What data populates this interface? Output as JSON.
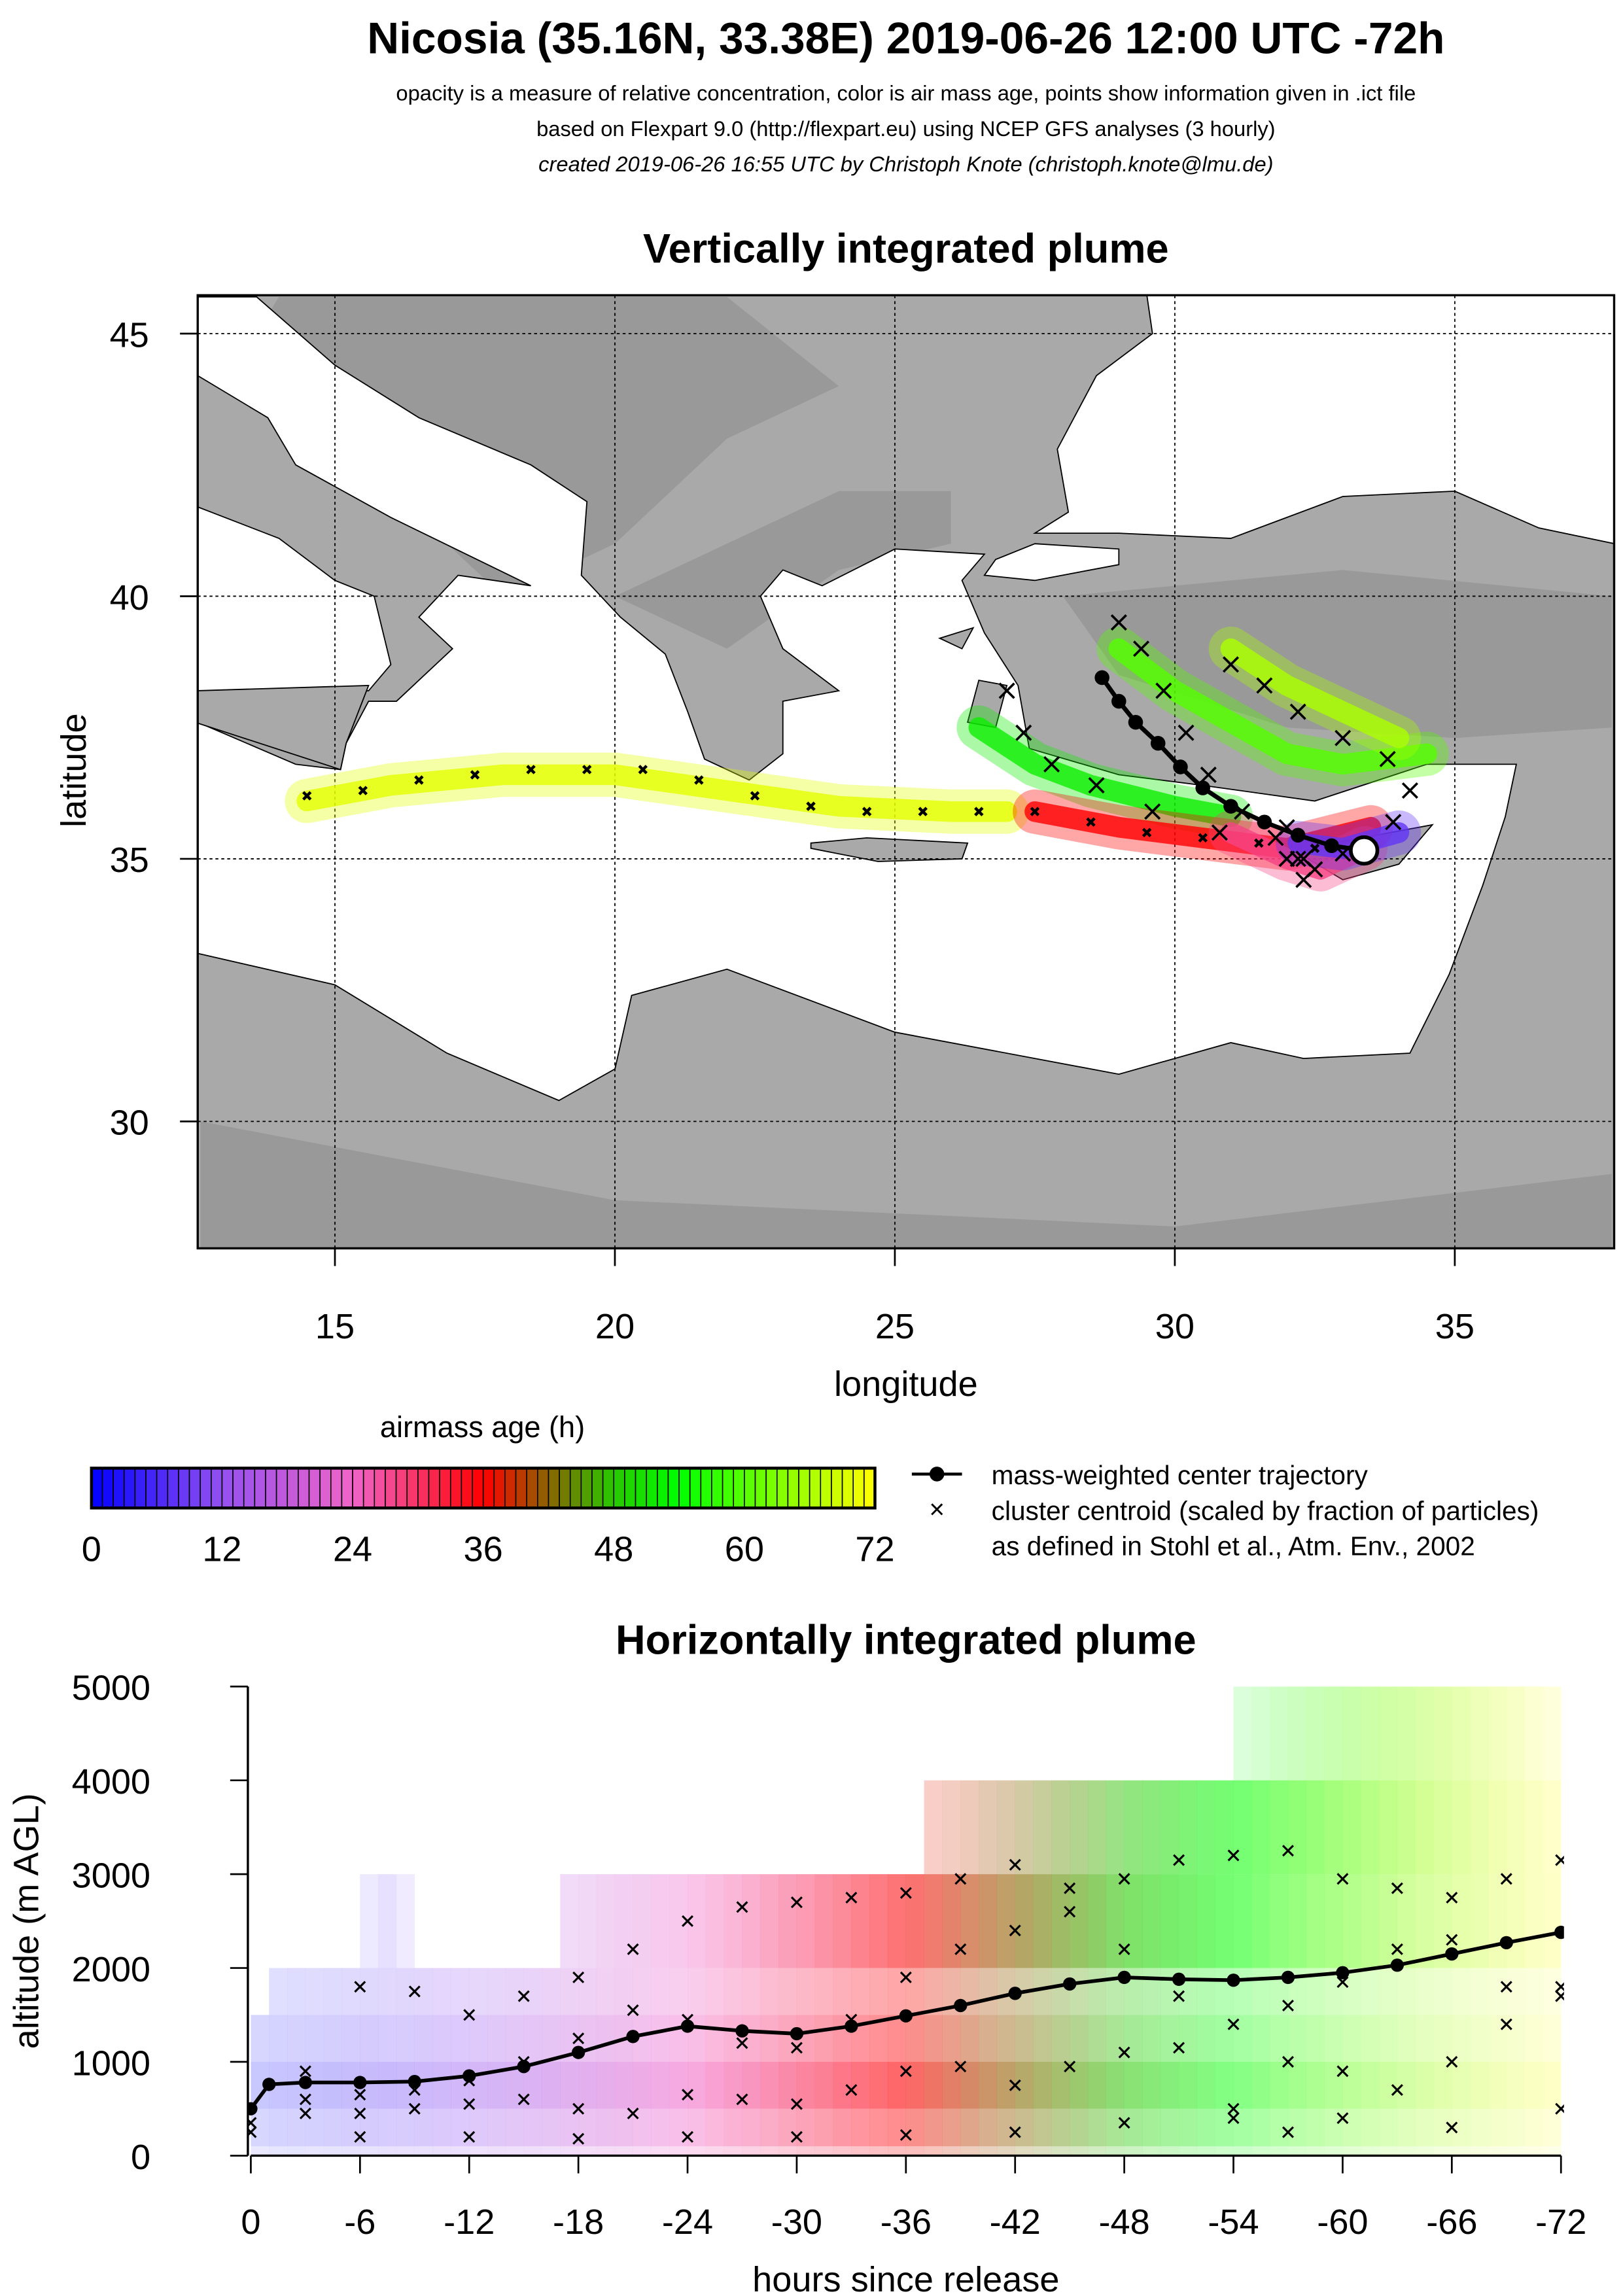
{
  "header": {
    "title": "Nicosia (35.16N, 33.38E) 2019-06-26 12:00 UTC -72h",
    "line1": "opacity is a measure of relative concentration, color is air mass age, points show information given in .ict file",
    "line2": "based on Flexpart 9.0 (http://flexpart.eu) using NCEP GFS analyses (3 hourly)",
    "line3": "created 2019-06-26 16:55 UTC by Christoph Knote (christoph.knote@lmu.de)"
  },
  "colors": {
    "age_stops": [
      [
        0,
        "#0000ff"
      ],
      [
        12,
        "#9450f0"
      ],
      [
        24,
        "#f064c8"
      ],
      [
        36,
        "#ff0000"
      ],
      [
        42,
        "#8a6400"
      ],
      [
        48,
        "#28c800"
      ],
      [
        54,
        "#00ff00"
      ],
      [
        72,
        "#ffff00"
      ]
    ],
    "land": "#a9a9a9",
    "sea": "#ffffff"
  },
  "colorbar": {
    "title": "airmass age (h)",
    "ticks": [
      "0",
      "12",
      "24",
      "36",
      "48",
      "60",
      "72"
    ]
  },
  "legend": {
    "center": "mass-weighted center trajectory",
    "cluster": "cluster centroid (scaled by fraction of particles)",
    "ref": "as defined in Stohl et al., Atm. Env., 2002"
  },
  "chart_data": [
    {
      "type": "scatter",
      "title": "Vertically integrated plume",
      "xlabel": "longitude",
      "ylabel": "latitude",
      "xlim": [
        12.55,
        37.85
      ],
      "ylim": [
        27.58,
        45.73
      ],
      "xticks": [
        "15",
        "20",
        "25",
        "30",
        "35"
      ],
      "yticks": [
        "30",
        "35",
        "40",
        "45"
      ],
      "grid": true,
      "release_point": [
        33.38,
        35.16
      ],
      "plume": [
        {
          "age": 70,
          "path": [
            [
              14.5,
              36.1
            ],
            [
              16,
              36.4
            ],
            [
              18,
              36.6
            ],
            [
              20,
              36.6
            ],
            [
              22,
              36.3
            ],
            [
              24,
              36.0
            ],
            [
              26,
              35.9
            ],
            [
              27,
              35.9
            ]
          ]
        },
        {
          "age": 52,
          "path": [
            [
              26.5,
              37.5
            ],
            [
              27.5,
              36.8
            ],
            [
              28.5,
              36.4
            ],
            [
              30,
              36.0
            ],
            [
              31,
              35.8
            ]
          ]
        },
        {
          "age": 60,
          "path": [
            [
              29,
              39.0
            ],
            [
              30,
              38.2
            ],
            [
              31,
              37.6
            ],
            [
              32,
              37.0
            ],
            [
              33,
              36.8
            ],
            [
              34.5,
              37.0
            ]
          ]
        },
        {
          "age": 66,
          "path": [
            [
              31,
              39.0
            ],
            [
              32,
              38.3
            ],
            [
              33,
              37.8
            ],
            [
              34,
              37.3
            ]
          ]
        },
        {
          "age": 36,
          "path": [
            [
              27.5,
              35.9
            ],
            [
              29,
              35.6
            ],
            [
              30.5,
              35.4
            ],
            [
              32,
              35.2
            ],
            [
              33.5,
              35.6
            ]
          ]
        },
        {
          "age": 28,
          "path": [
            [
              31,
              35.5
            ],
            [
              32,
              35.0
            ],
            [
              32.6,
              34.8
            ],
            [
              33.4,
              35.2
            ]
          ]
        },
        {
          "age": 8,
          "path": [
            [
              32.2,
              35.3
            ],
            [
              33,
              35.2
            ],
            [
              34,
              35.5
            ]
          ]
        }
      ],
      "center_trajectory": [
        [
          33.38,
          35.16
        ],
        [
          32.8,
          35.25
        ],
        [
          32.2,
          35.45
        ],
        [
          31.6,
          35.7
        ],
        [
          31.0,
          36.0
        ],
        [
          30.5,
          36.35
        ],
        [
          30.1,
          36.75
        ],
        [
          29.7,
          37.2
        ],
        [
          29.3,
          37.6
        ],
        [
          29.0,
          38.0
        ],
        [
          28.7,
          38.45
        ]
      ],
      "clusters": [
        [
          [
            14.5,
            36.2
          ],
          [
            15.5,
            36.3
          ],
          [
            16.5,
            36.5
          ],
          [
            17.5,
            36.6
          ],
          [
            18.5,
            36.7
          ],
          [
            19.5,
            36.7
          ],
          [
            20.5,
            36.7
          ],
          [
            21.5,
            36.5
          ],
          [
            22.5,
            36.2
          ],
          [
            23.5,
            36.0
          ],
          [
            24.5,
            35.9
          ],
          [
            25.5,
            35.9
          ],
          [
            26.5,
            35.9
          ],
          [
            27.5,
            35.9
          ],
          [
            28.5,
            35.7
          ],
          [
            29.5,
            35.5
          ],
          [
            30.5,
            35.4
          ],
          [
            31.5,
            35.3
          ],
          [
            32.5,
            35.2
          ],
          [
            33.38,
            35.16
          ]
        ],
        [
          [
            29.0,
            39.5
          ],
          [
            29.4,
            39.0
          ],
          [
            29.8,
            38.2
          ],
          [
            30.2,
            37.4
          ],
          [
            30.6,
            36.6
          ],
          [
            31.2,
            35.9
          ],
          [
            31.8,
            35.4
          ],
          [
            32.3,
            35.0
          ],
          [
            33.0,
            35.1
          ]
        ],
        [
          [
            31.0,
            38.7
          ],
          [
            31.6,
            38.3
          ],
          [
            32.2,
            37.8
          ],
          [
            33.0,
            37.3
          ],
          [
            33.8,
            36.9
          ],
          [
            34.2,
            36.3
          ],
          [
            33.9,
            35.7
          ],
          [
            33.38,
            35.16
          ]
        ],
        [
          [
            27.0,
            38.2
          ],
          [
            27.3,
            37.4
          ],
          [
            27.8,
            36.8
          ],
          [
            28.6,
            36.4
          ],
          [
            29.6,
            35.9
          ],
          [
            30.8,
            35.5
          ],
          [
            32.0,
            35.0
          ],
          [
            32.5,
            34.8
          ]
        ],
        [
          [
            32.0,
            35.6
          ],
          [
            32.2,
            35.0
          ],
          [
            32.3,
            34.6
          ]
        ]
      ]
    },
    {
      "type": "line",
      "title": "Horizontally integrated plume",
      "xlabel": "hours since release",
      "ylabel": "altitude (m AGL)",
      "xlim": [
        0,
        -72
      ],
      "ylim": [
        0,
        5000
      ],
      "xticks": [
        "0",
        "-6",
        "-12",
        "-18",
        "-24",
        "-30",
        "-36",
        "-42",
        "-48",
        "-54",
        "-60",
        "-66",
        "-72"
      ],
      "yticks": [
        "0",
        "1000",
        "2000",
        "3000",
        "4000",
        "5000"
      ],
      "plume_bands": [
        {
          "alt": [
            0,
            100
          ],
          "hours": [
            0,
            72
          ],
          "opacity": 0.25
        },
        {
          "alt": [
            100,
            500
          ],
          "hours": [
            0,
            72
          ],
          "opacity": 0.45
        },
        {
          "alt": [
            500,
            1000
          ],
          "hours": [
            0,
            72
          ],
          "opacity": 0.6
        },
        {
          "alt": [
            1000,
            1500
          ],
          "hours": [
            0,
            72
          ],
          "opacity": 0.45
        },
        {
          "alt": [
            1500,
            2000
          ],
          "hours": [
            1,
            72
          ],
          "opacity": 0.35
        },
        {
          "alt": [
            2000,
            3000
          ],
          "hours": [
            17,
            72
          ],
          "opacity": 0.6
        },
        {
          "alt": [
            2000,
            3000
          ],
          "hours": [
            6,
            9
          ],
          "opacity": 0.15
        },
        {
          "alt": [
            3000,
            4000
          ],
          "hours": [
            37,
            72
          ],
          "opacity": 0.55
        },
        {
          "alt": [
            4000,
            5000
          ],
          "hours": [
            54,
            72
          ],
          "opacity": 0.35
        }
      ],
      "center": {
        "hours": [
          0,
          -1,
          -3,
          -6,
          -9,
          -12,
          -15,
          -18,
          -21,
          -24,
          -27,
          -30,
          -33,
          -36,
          -39,
          -42,
          -45,
          -48,
          -51,
          -54,
          -57,
          -60,
          -63,
          -66,
          -69,
          -72
        ],
        "altitude": [
          500,
          760,
          780,
          780,
          790,
          850,
          950,
          1100,
          1270,
          1380,
          1330,
          1300,
          1380,
          1490,
          1600,
          1730,
          1830,
          1900,
          1880,
          1870,
          1900,
          1950,
          2030,
          2150,
          2270,
          2380
        ]
      },
      "clusters": [
        {
          "hours": [
            0,
            -3,
            -6,
            -9,
            -12,
            -15,
            -18,
            -21,
            -24,
            -27,
            -30,
            -33,
            -36,
            -39,
            -42,
            -45,
            -48,
            -51,
            -54,
            -57,
            -60,
            -63,
            -66,
            -69,
            -72
          ],
          "altitude": [
            350,
            900,
            1800,
            1750,
            1500,
            1700,
            1900,
            2200,
            2500,
            2650,
            2700,
            2750,
            2800,
            2950,
            3100,
            2850,
            2950,
            3150,
            3200,
            3250,
            2950,
            2850,
            2750,
            2950,
            3150
          ]
        },
        {
          "hours": [
            -3,
            -6,
            -9,
            -12,
            -15,
            -18,
            -21,
            -24,
            -27,
            -30,
            -33,
            -36,
            -39,
            -42,
            -45,
            -48,
            -51,
            -54,
            -57,
            -60,
            -63,
            -66,
            -69,
            -72
          ],
          "altitude": [
            600,
            650,
            700,
            800,
            1000,
            1250,
            1550,
            1450,
            1200,
            1150,
            1450,
            1900,
            2200,
            2400,
            2600,
            2200,
            1700,
            1400,
            1600,
            1850,
            2200,
            2300,
            1800,
            1800
          ]
        },
        {
          "hours": [
            -3,
            -6,
            -9,
            -12,
            -15,
            -18,
            -21,
            -24,
            -27,
            -30,
            -33,
            -36,
            -39,
            -42,
            -45,
            -48,
            -51,
            -54,
            -57,
            -60,
            -63,
            -66,
            -69,
            -72
          ],
          "altitude": [
            450,
            450,
            500,
            550,
            600,
            500,
            450,
            650,
            600,
            550,
            700,
            900,
            950,
            750,
            950,
            1100,
            1150,
            500,
            1000,
            900,
            700,
            1000,
            1400,
            1700
          ]
        },
        {
          "hours": [
            0,
            -6,
            -12,
            -18,
            -24,
            -30,
            -36,
            -42,
            -48,
            -54,
            -57,
            -60,
            -66,
            -72
          ],
          "altitude": [
            250,
            200,
            200,
            180,
            200,
            200,
            220,
            250,
            350,
            400,
            250,
            400,
            300,
            500
          ]
        }
      ]
    }
  ]
}
